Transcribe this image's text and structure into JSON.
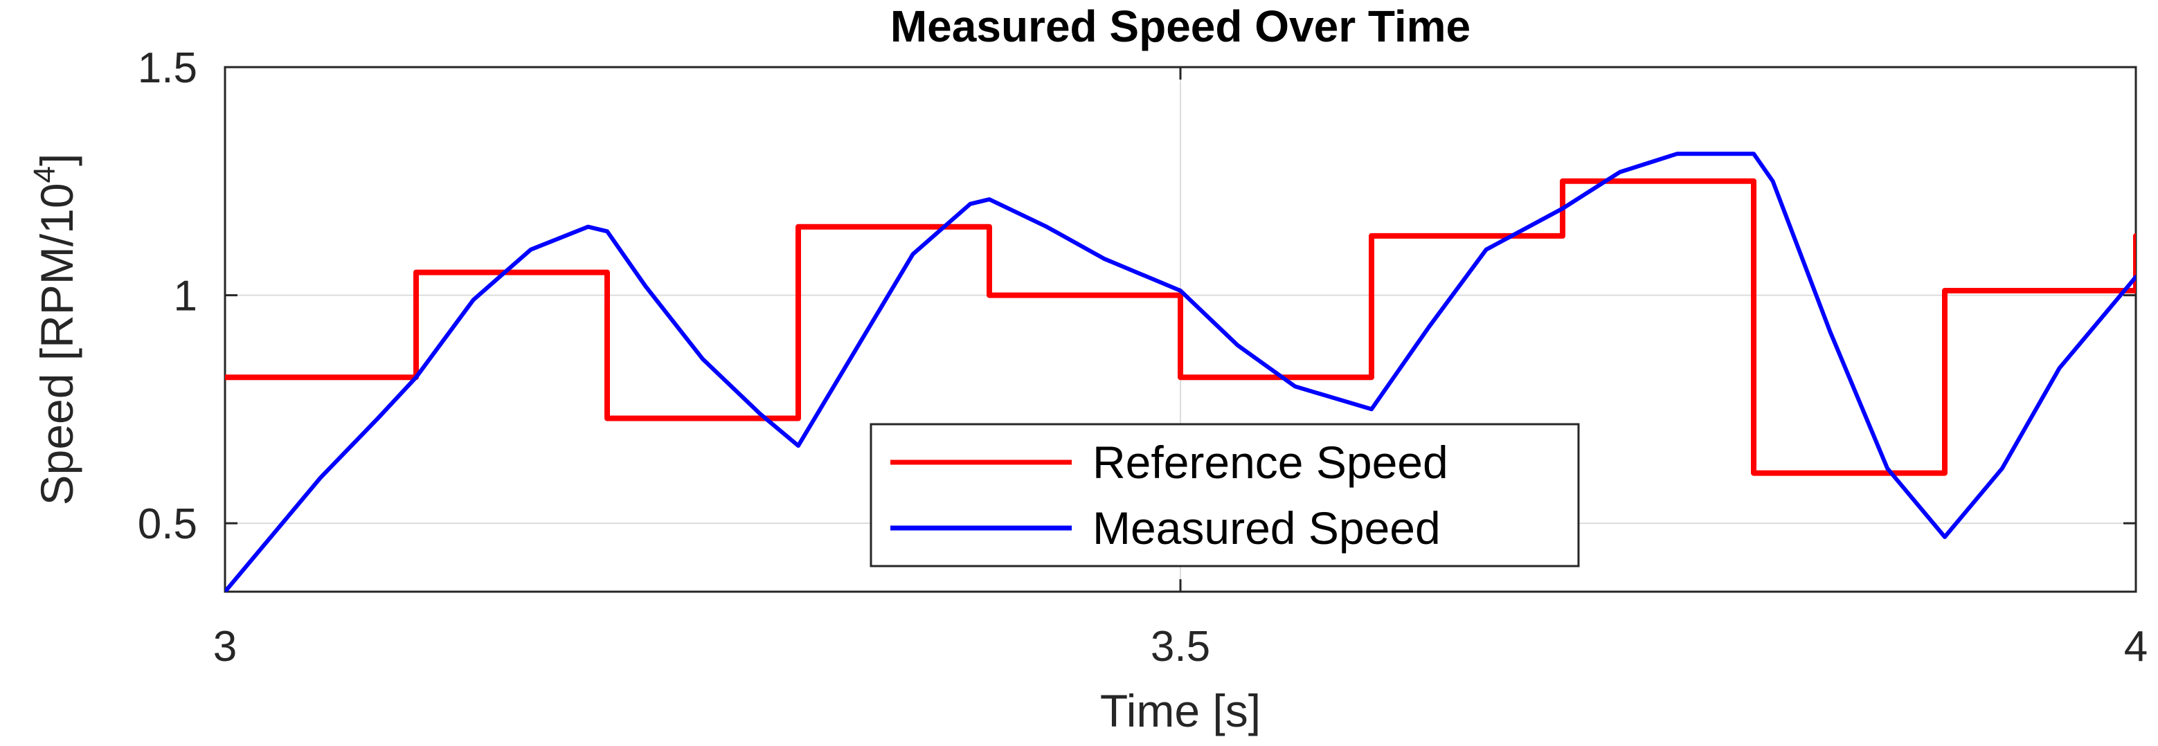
{
  "chart_data": {
    "type": "line",
    "title": "Measured Speed Over Time",
    "xlabel": "Time [s]",
    "ylabel": "Speed [RPM/10^4]",
    "ylabel_parts": {
      "main": "Speed [RPM/10",
      "exp": "4",
      "close": "]"
    },
    "xlim": [
      3,
      4
    ],
    "ylim": [
      0.35,
      1.5
    ],
    "xticks": [
      3,
      3.5,
      4
    ],
    "xtick_labels": [
      "3",
      "3.5",
      "4"
    ],
    "yticks": [
      0.5,
      1,
      1.5
    ],
    "ytick_labels": [
      "0.5",
      "1",
      "1.5"
    ],
    "grid": true,
    "legend_position": "bottom-center",
    "series": [
      {
        "name": "Reference Speed",
        "color": "#ff0000",
        "style": "step",
        "x": [
          3.0,
          3.1,
          3.1,
          3.2,
          3.2,
          3.3,
          3.3,
          3.4,
          3.4,
          3.5,
          3.5,
          3.6,
          3.6,
          3.7,
          3.7,
          3.8,
          3.8,
          3.9,
          3.9,
          4.0,
          4.0
        ],
        "y": [
          0.82,
          0.82,
          1.05,
          1.05,
          0.73,
          0.73,
          1.15,
          1.15,
          1.0,
          1.0,
          0.82,
          0.82,
          1.13,
          1.13,
          1.25,
          1.25,
          0.61,
          0.61,
          1.01,
          1.01,
          1.13
        ]
      },
      {
        "name": "Measured Speed",
        "color": "#0000ff",
        "style": "line",
        "x": [
          3.0,
          3.02,
          3.05,
          3.08,
          3.1,
          3.13,
          3.16,
          3.19,
          3.2,
          3.22,
          3.25,
          3.28,
          3.3,
          3.33,
          3.36,
          3.39,
          3.4,
          3.43,
          3.46,
          3.5,
          3.53,
          3.56,
          3.6,
          3.63,
          3.66,
          3.7,
          3.73,
          3.76,
          3.8,
          3.81,
          3.84,
          3.87,
          3.9,
          3.93,
          3.96,
          4.0
        ],
        "y": [
          0.35,
          0.45,
          0.6,
          0.73,
          0.82,
          0.99,
          1.1,
          1.15,
          1.14,
          1.02,
          0.86,
          0.74,
          0.67,
          0.88,
          1.09,
          1.2,
          1.21,
          1.15,
          1.08,
          1.01,
          0.89,
          0.8,
          0.75,
          0.93,
          1.1,
          1.19,
          1.27,
          1.31,
          1.31,
          1.25,
          0.92,
          0.62,
          0.47,
          0.62,
          0.84,
          1.04
        ]
      }
    ]
  }
}
